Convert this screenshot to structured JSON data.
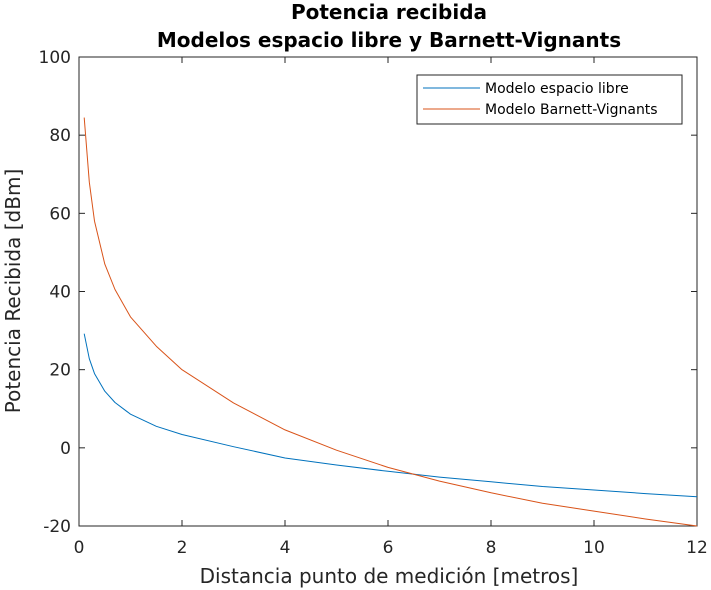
{
  "chart_data": {
    "type": "line",
    "title": [
      "Potencia recibida",
      "Modelos espacio libre y Barnett-Vignants"
    ],
    "xlabel": "Distancia punto de medición [metros]",
    "ylabel": "Potencia Recibida [dBm]",
    "xlim": [
      0,
      12
    ],
    "ylim": [
      -20,
      100
    ],
    "xticks": [
      0,
      2,
      4,
      6,
      8,
      10,
      12
    ],
    "yticks": [
      -20,
      0,
      20,
      40,
      60,
      80,
      100
    ],
    "grid": false,
    "legend_position": "top-right",
    "series": [
      {
        "name": "Modelo espacio libre",
        "color": "#0072BD",
        "x": [
          0.1,
          0.2,
          0.3,
          0.5,
          0.7,
          1.0,
          1.5,
          2.0,
          3.0,
          4.0,
          5.0,
          6.0,
          7.0,
          8.0,
          9.0,
          10.0,
          11.0,
          12.0
        ],
        "y": [
          29.2,
          22.8,
          19.0,
          14.5,
          11.6,
          8.6,
          5.5,
          3.4,
          0.3,
          -2.6,
          -4.4,
          -6.0,
          -7.5,
          -8.7,
          -9.9,
          -10.8,
          -11.7,
          -12.5
        ]
      },
      {
        "name": "Modelo Barnett-Vignants",
        "color": "#D95319",
        "x": [
          0.1,
          0.2,
          0.3,
          0.5,
          0.7,
          1.0,
          1.5,
          2.0,
          3.0,
          4.0,
          5.0,
          6.0,
          7.0,
          8.0,
          9.0,
          10.0,
          11.0,
          12.0
        ],
        "y": [
          84.5,
          68.0,
          58.0,
          47.0,
          40.5,
          33.5,
          26.0,
          20.0,
          11.5,
          4.6,
          -0.6,
          -5.0,
          -8.5,
          -11.5,
          -14.2,
          -16.2,
          -18.2,
          -20.0
        ]
      }
    ]
  }
}
